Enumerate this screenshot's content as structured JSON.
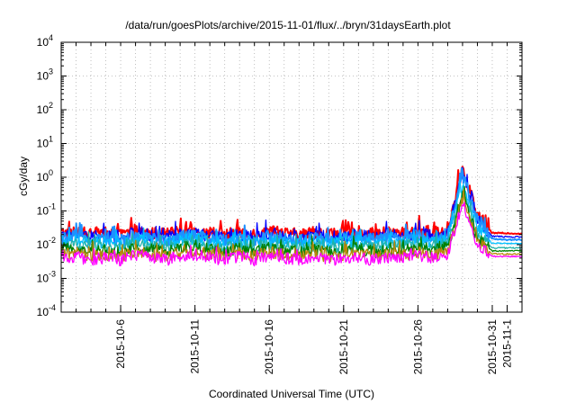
{
  "chart_data": {
    "type": "line",
    "title": "/data/run/goesPlots/archive/2015-11-01/flux/../bryn/31daysEarth.plot",
    "xlabel": "Coordinated Universal Time (UTC)",
    "ylabel": "cGy/day",
    "yscale": "log",
    "ylim": [
      0.0001,
      10000
    ],
    "xlim": [
      "2015-10-02",
      "2015-11-02"
    ],
    "y_ticks": [
      {
        "base": "10",
        "exp": "-4",
        "value": 0.0001
      },
      {
        "base": "10",
        "exp": "-3",
        "value": 0.001
      },
      {
        "base": "10",
        "exp": "-2",
        "value": 0.01
      },
      {
        "base": "10",
        "exp": "-1",
        "value": 0.1
      },
      {
        "base": "10",
        "exp": "0",
        "value": 1
      },
      {
        "base": "10",
        "exp": "1",
        "value": 10
      },
      {
        "base": "10",
        "exp": "2",
        "value": 100
      },
      {
        "base": "10",
        "exp": "3",
        "value": 1000
      },
      {
        "base": "10",
        "exp": "4",
        "value": 10000
      }
    ],
    "x_tick_labels": [
      {
        "label": "2015-10-6",
        "date": "2015-10-06"
      },
      {
        "label": "2015-10-11",
        "date": "2015-10-11"
      },
      {
        "label": "2015-10-16",
        "date": "2015-10-16"
      },
      {
        "label": "2015-10-21",
        "date": "2015-10-21"
      },
      {
        "label": "2015-10-26",
        "date": "2015-10-26"
      },
      {
        "label": "2015-10-31",
        "date": "2015-10-31"
      },
      {
        "label": "2015-11-1",
        "date": "2015-11-01"
      }
    ],
    "x_grid_dates": [
      "2015-10-03",
      "2015-10-04",
      "2015-10-05",
      "2015-10-06",
      "2015-10-07",
      "2015-10-08",
      "2015-10-09",
      "2015-10-10",
      "2015-10-11",
      "2015-10-12",
      "2015-10-13",
      "2015-10-14",
      "2015-10-15",
      "2015-10-16",
      "2015-10-17",
      "2015-10-18",
      "2015-10-19",
      "2015-10-20",
      "2015-10-21",
      "2015-10-22",
      "2015-10-23",
      "2015-10-24",
      "2015-10-25",
      "2015-10-26",
      "2015-10-27",
      "2015-10-28",
      "2015-10-29",
      "2015-10-30",
      "2015-10-31",
      "2015-11-01"
    ],
    "grid": true,
    "x": [
      "2015-10-02",
      "2015-10-03",
      "2015-10-04",
      "2015-10-05",
      "2015-10-06",
      "2015-10-07",
      "2015-10-08",
      "2015-10-09",
      "2015-10-10",
      "2015-10-11",
      "2015-10-12",
      "2015-10-13",
      "2015-10-14",
      "2015-10-15",
      "2015-10-16",
      "2015-10-17",
      "2015-10-18",
      "2015-10-19",
      "2015-10-20",
      "2015-10-21",
      "2015-10-22",
      "2015-10-23",
      "2015-10-24",
      "2015-10-25",
      "2015-10-26",
      "2015-10-27",
      "2015-10-28",
      "2015-10-29",
      "2015-10-30",
      "2015-10-31",
      "2015-11-01",
      "2015-11-02"
    ],
    "series": [
      {
        "color": "#ff0000",
        "values": [
          0.022,
          0.024,
          0.021,
          0.023,
          0.02,
          0.025,
          0.022,
          0.021,
          0.024,
          0.026,
          0.022,
          0.02,
          0.023,
          0.021,
          0.024,
          0.022,
          0.02,
          0.023,
          0.021,
          0.022,
          0.024,
          0.021,
          0.023,
          0.022,
          0.025,
          0.023,
          0.024,
          2.0,
          0.08,
          0.022,
          0.022,
          0.021
        ]
      },
      {
        "color": "#0000ff",
        "values": [
          0.018,
          0.02,
          0.017,
          0.019,
          0.016,
          0.021,
          0.018,
          0.017,
          0.02,
          0.022,
          0.018,
          0.016,
          0.019,
          0.017,
          0.02,
          0.018,
          0.016,
          0.019,
          0.017,
          0.018,
          0.02,
          0.017,
          0.019,
          0.018,
          0.021,
          0.019,
          0.02,
          1.5,
          0.06,
          0.018,
          0.017,
          0.017
        ]
      },
      {
        "color": "#1e90ff",
        "values": [
          0.015,
          0.017,
          0.014,
          0.016,
          0.013,
          0.018,
          0.015,
          0.014,
          0.017,
          0.019,
          0.015,
          0.013,
          0.016,
          0.014,
          0.017,
          0.015,
          0.013,
          0.016,
          0.014,
          0.015,
          0.017,
          0.014,
          0.016,
          0.015,
          0.018,
          0.016,
          0.017,
          1.2,
          0.05,
          0.015,
          0.014,
          0.014
        ]
      },
      {
        "color": "#00bfff",
        "values": [
          0.012,
          0.013,
          0.011,
          0.012,
          0.01,
          0.014,
          0.012,
          0.011,
          0.013,
          0.015,
          0.012,
          0.01,
          0.013,
          0.011,
          0.013,
          0.012,
          0.01,
          0.012,
          0.011,
          0.012,
          0.013,
          0.011,
          0.012,
          0.012,
          0.014,
          0.012,
          0.013,
          0.6,
          0.03,
          0.011,
          0.011,
          0.011
        ]
      },
      {
        "color": "#20b2aa",
        "values": [
          0.009,
          0.01,
          0.008,
          0.009,
          0.008,
          0.011,
          0.009,
          0.008,
          0.01,
          0.011,
          0.009,
          0.008,
          0.01,
          0.008,
          0.01,
          0.009,
          0.008,
          0.009,
          0.008,
          0.009,
          0.01,
          0.008,
          0.009,
          0.009,
          0.011,
          0.009,
          0.01,
          0.4,
          0.02,
          0.008,
          0.008,
          0.008
        ]
      },
      {
        "color": "#008000",
        "values": [
          0.007,
          0.008,
          0.006,
          0.007,
          0.006,
          0.008,
          0.007,
          0.006,
          0.008,
          0.009,
          0.007,
          0.006,
          0.008,
          0.006,
          0.008,
          0.007,
          0.006,
          0.007,
          0.006,
          0.007,
          0.008,
          0.006,
          0.007,
          0.007,
          0.008,
          0.007,
          0.008,
          0.3,
          0.015,
          0.0065,
          0.0065,
          0.0065
        ]
      },
      {
        "color": "#b8860b",
        "values": [
          0.005,
          0.006,
          0.0045,
          0.005,
          0.0045,
          0.006,
          0.005,
          0.0045,
          0.0058,
          0.0065,
          0.005,
          0.0045,
          0.0058,
          0.0045,
          0.0058,
          0.005,
          0.0045,
          0.005,
          0.0045,
          0.005,
          0.0058,
          0.0045,
          0.005,
          0.005,
          0.006,
          0.005,
          0.0058,
          0.25,
          0.012,
          0.0053,
          0.0053,
          0.0053
        ]
      },
      {
        "color": "#ff00ff",
        "values": [
          0.004,
          0.0045,
          0.0035,
          0.004,
          0.0035,
          0.0048,
          0.004,
          0.0035,
          0.0045,
          0.005,
          0.004,
          0.0035,
          0.0045,
          0.0035,
          0.0045,
          0.004,
          0.0035,
          0.004,
          0.0035,
          0.004,
          0.0045,
          0.0035,
          0.004,
          0.004,
          0.0048,
          0.004,
          0.0045,
          0.2,
          0.01,
          0.0045,
          0.0045,
          0.0045
        ]
      }
    ]
  }
}
